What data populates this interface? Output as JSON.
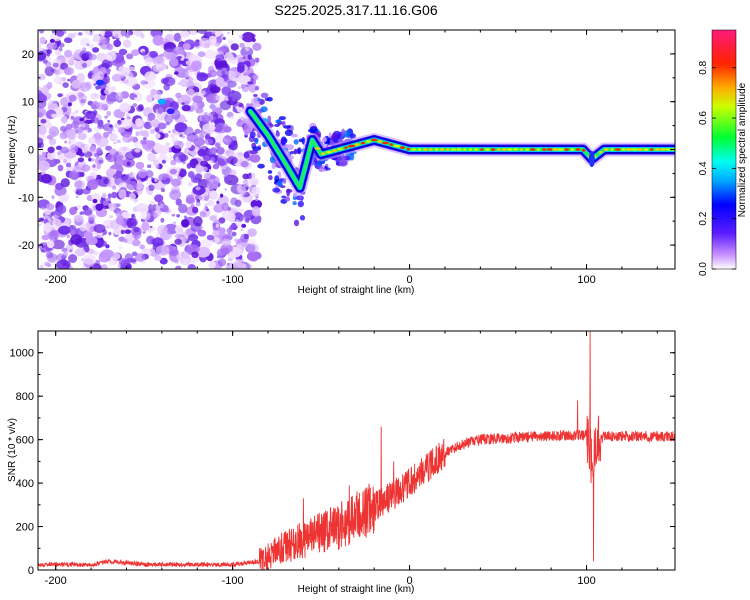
{
  "title": "S225.2025.317.11.16.G06",
  "chart_data": [
    {
      "type": "heatmap",
      "xlabel": "Height of straight line (km)",
      "ylabel": "Frequency (Hz)",
      "xlim": [
        -210,
        150
      ],
      "ylim": [
        -25,
        25
      ],
      "xticks": [
        -200,
        -100,
        0,
        100
      ],
      "xtick_labels": [
        "-200",
        "-100",
        "0",
        "100"
      ],
      "yticks": [
        -20,
        -10,
        0,
        10,
        20
      ],
      "ytick_labels": [
        "-20",
        "-10",
        "0",
        "10",
        "20"
      ],
      "colorbar": {
        "label": "Normalized spectral amplitude",
        "range": [
          0,
          0.95
        ],
        "ticks": [
          0.0,
          0.2,
          0.4,
          0.6,
          0.8
        ],
        "tick_labels": [
          "0.0",
          "0.2",
          "0.4",
          "0.6",
          "0.8"
        ]
      },
      "ridge": {
        "x": [
          -90,
          -80,
          -70,
          -62,
          -55,
          -50,
          -40,
          -30,
          -20,
          -10,
          0,
          10,
          50,
          98,
          103,
          110,
          150
        ],
        "y": [
          8,
          3,
          -3,
          -8,
          2,
          -1,
          0,
          1,
          2,
          1,
          0,
          0,
          0,
          0,
          -2,
          0,
          0
        ]
      }
    },
    {
      "type": "line",
      "xlabel": "Height of straight line (km)",
      "ylabel": "SNR (10 * v/v)",
      "xlim": [
        -210,
        150
      ],
      "ylim": [
        0,
        1100
      ],
      "xticks": [
        -200,
        -100,
        0,
        100
      ],
      "xtick_labels": [
        "-200",
        "-100",
        "0",
        "100"
      ],
      "yticks": [
        0,
        200,
        400,
        600,
        800,
        1000
      ],
      "ytick_labels": [
        "0",
        "200",
        "400",
        "600",
        "800",
        "1000"
      ],
      "series": [
        {
          "name": "SNR",
          "color": "#ee3333",
          "profile_x": [
            -210,
            -180,
            -170,
            -150,
            -100,
            -85,
            -75,
            -60,
            -50,
            -40,
            -30,
            -20,
            -10,
            0,
            10,
            20,
            30,
            40,
            60,
            90,
            100,
            103,
            106,
            110,
            150
          ],
          "profile_y": [
            25,
            25,
            40,
            25,
            25,
            40,
            90,
            140,
            170,
            200,
            240,
            290,
            340,
            400,
            470,
            540,
            580,
            600,
            610,
            620,
            620,
            500,
            600,
            615,
            615
          ],
          "spikes": [
            {
              "x": -60,
              "y": 330
            },
            {
              "x": -34,
              "y": 390
            },
            {
              "x": -16,
              "y": 660
            },
            {
              "x": -9,
              "y": 500
            },
            {
              "x": 95,
              "y": 780
            },
            {
              "x": 102,
              "y": 1100
            },
            {
              "x": 104,
              "y": 40
            }
          ]
        }
      ]
    }
  ]
}
